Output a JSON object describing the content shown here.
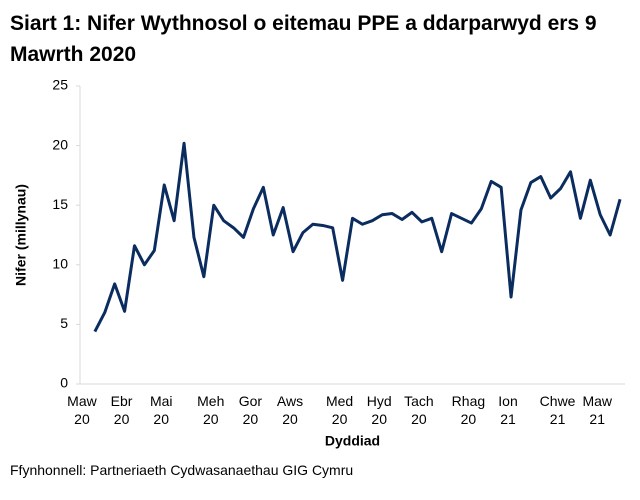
{
  "chart_data": {
    "type": "line",
    "title": "Siart 1: Nifer Wythnosol o eitemau PPE a ddarparwyd ers 9 Mawrth 2020",
    "x_label": "Dyddiad",
    "y_label": "Nifer (millynau)",
    "source": "Ffynhonnell: Partneriaeth Cydwasanaethau GIG Cymru",
    "categories": [
      "Maw 20",
      null,
      null,
      null,
      "Ebr 20",
      null,
      null,
      null,
      "Mai 20",
      null,
      null,
      null,
      null,
      "Meh 20",
      null,
      null,
      null,
      "Gor 20",
      null,
      null,
      null,
      "Aws 20",
      null,
      null,
      null,
      null,
      "Med 20",
      null,
      null,
      null,
      "Hyd 20",
      null,
      null,
      null,
      "Tach 20",
      null,
      null,
      null,
      null,
      "Rhag 20",
      null,
      null,
      null,
      "Ion 21",
      null,
      null,
      null,
      null,
      "Chwe 21",
      null,
      null,
      null,
      "Maw 21",
      null,
      null
    ],
    "series": [
      {
        "name": "Nifer",
        "color": "#0b2c5f",
        "values": [
          null,
          4.4,
          6.0,
          8.4,
          6.1,
          11.6,
          10.0,
          11.2,
          16.7,
          13.7,
          20.2,
          12.3,
          9.0,
          15.0,
          13.7,
          13.1,
          12.3,
          14.7,
          16.5,
          12.5,
          14.8,
          11.1,
          12.7,
          13.4,
          13.3,
          13.1,
          8.7,
          13.9,
          13.4,
          13.7,
          14.2,
          14.3,
          13.8,
          14.4,
          13.6,
          13.9,
          11.1,
          14.3,
          13.9,
          13.5,
          14.7,
          17.0,
          16.5,
          7.3,
          14.6,
          16.9,
          17.4,
          15.6,
          16.4,
          17.8,
          13.9,
          17.1,
          14.2,
          12.5,
          15.5
        ]
      }
    ],
    "ylim": [
      0,
      25
    ],
    "yticks": [
      0,
      5,
      10,
      15,
      20,
      25
    ],
    "grid": false
  }
}
